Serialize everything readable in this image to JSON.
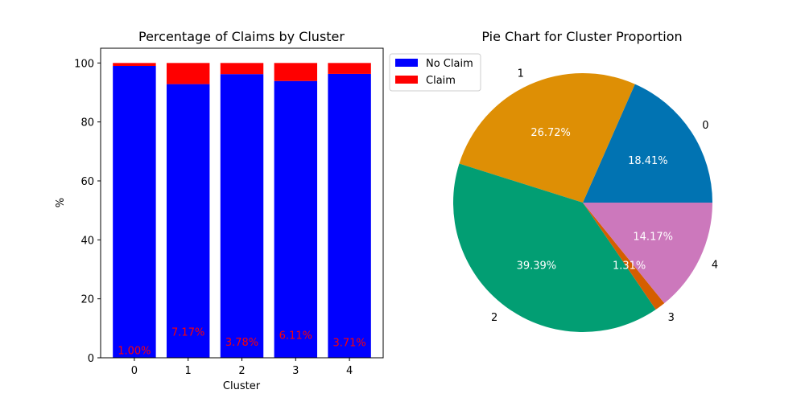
{
  "chart_data": [
    {
      "type": "bar",
      "stacked": true,
      "title": "Percentage of Claims by Cluster",
      "xlabel": "Cluster",
      "ylabel": "%",
      "categories": [
        "0",
        "1",
        "2",
        "3",
        "4"
      ],
      "ylim": [
        0,
        105
      ],
      "yticks": [
        "0",
        "20",
        "40",
        "60",
        "80",
        "100"
      ],
      "series": [
        {
          "name": "No Claim",
          "color": "#0000ff",
          "values": [
            99.0,
            92.83,
            96.22,
            93.89,
            96.29
          ]
        },
        {
          "name": "Claim",
          "color": "#ff0000",
          "values": [
            1.0,
            7.17,
            3.78,
            6.11,
            3.71
          ]
        }
      ],
      "data_labels": [
        "1.00%",
        "7.17%",
        "3.78%",
        "6.11%",
        "3.71%"
      ],
      "legend": {
        "position": "outside-top-right",
        "entries": [
          "No Claim",
          "Claim"
        ]
      },
      "grid": false
    },
    {
      "type": "pie",
      "title": "Pie Chart for Cluster Proportion",
      "labels": [
        "0",
        "1",
        "2",
        "3",
        "4"
      ],
      "values": [
        18.41,
        26.72,
        39.39,
        1.31,
        14.17
      ],
      "pct_labels": [
        "18.41%",
        "26.72%",
        "39.39%",
        "1.31%",
        "14.17%"
      ],
      "colors": [
        "#0173b2",
        "#de8f05",
        "#029e73",
        "#d55e00",
        "#cc78bc"
      ],
      "start_angle": 0,
      "direction": "counterclockwise"
    }
  ]
}
